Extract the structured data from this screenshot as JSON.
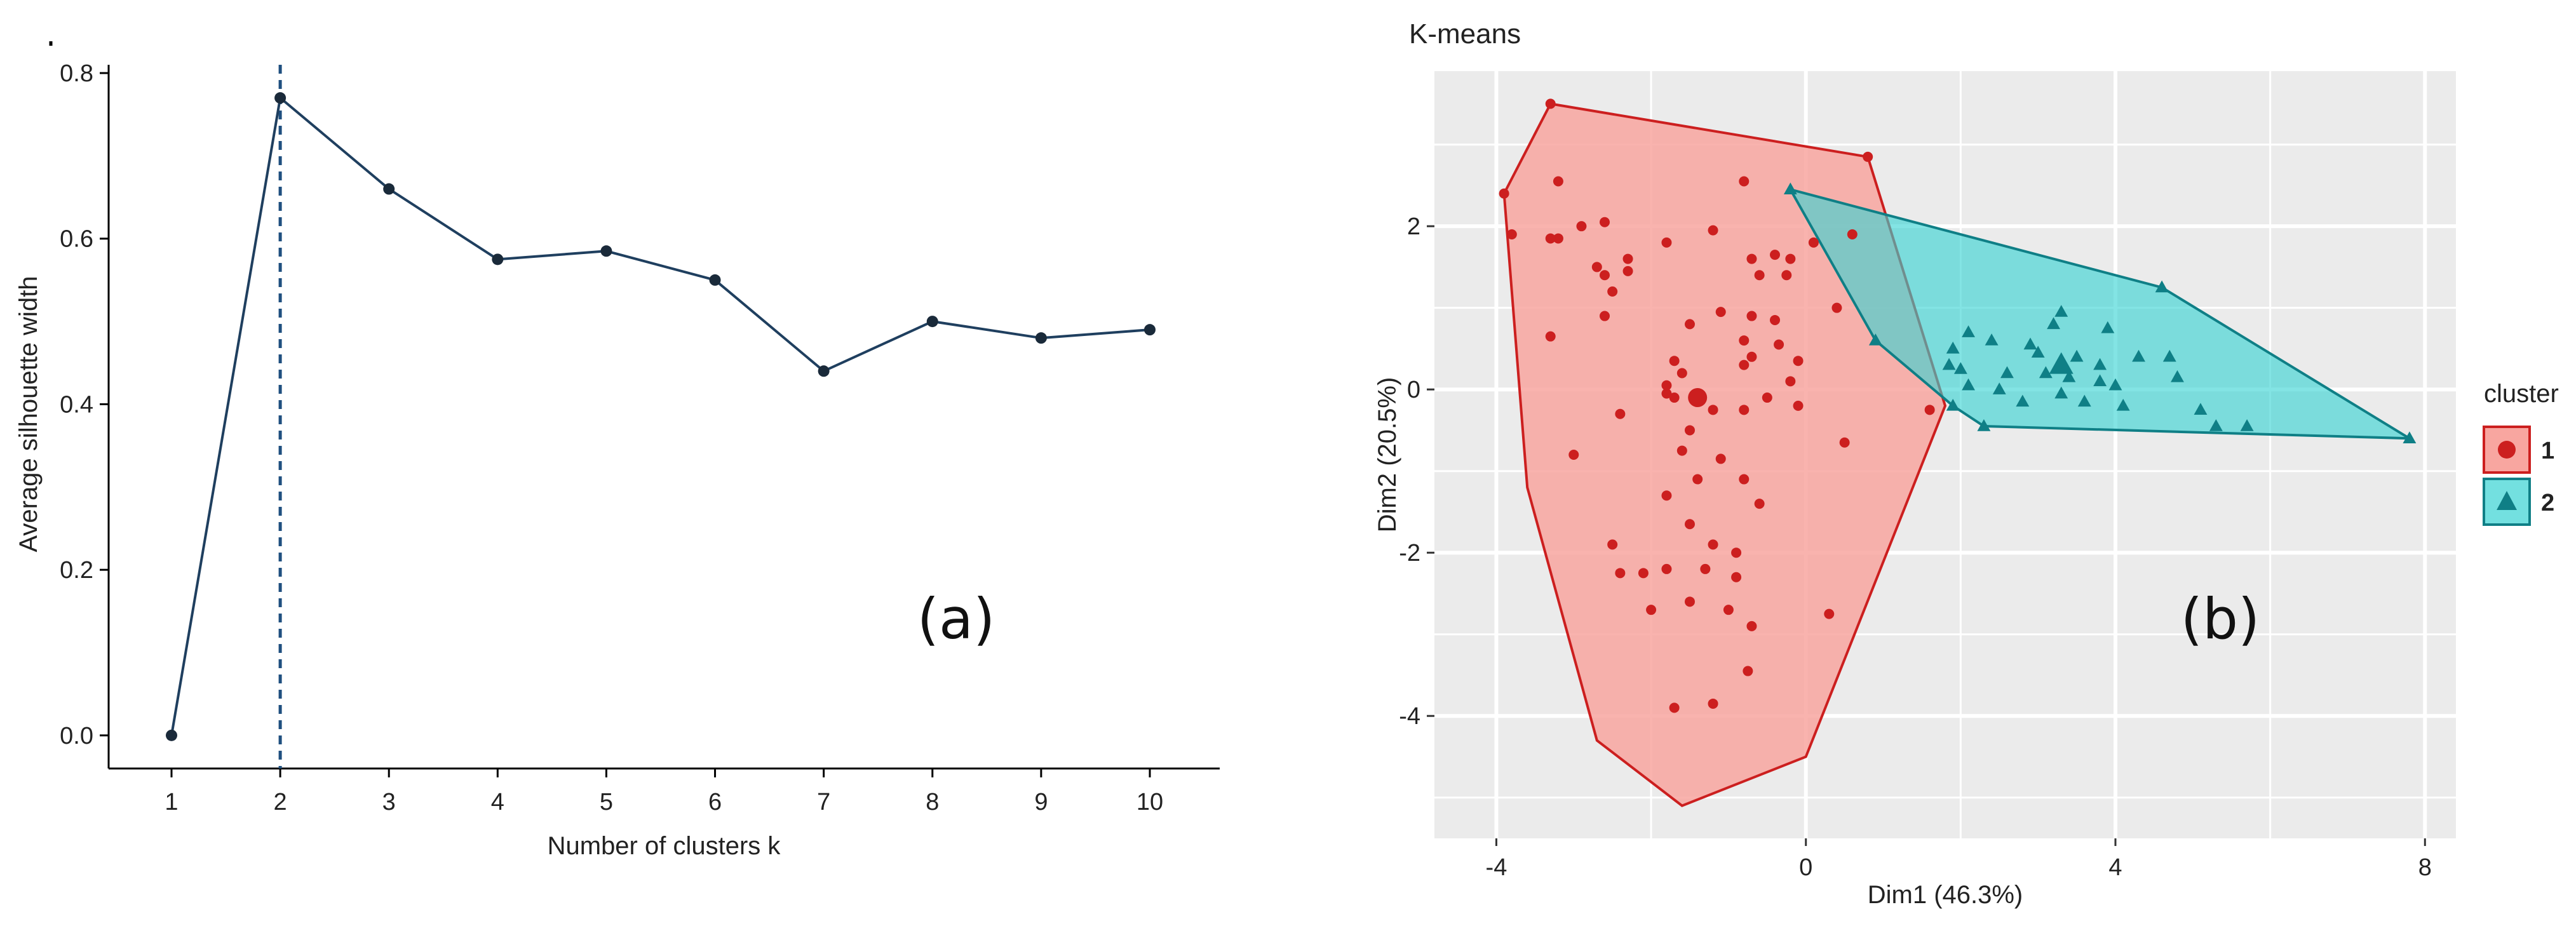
{
  "chart_data": [
    {
      "id": "a",
      "type": "line",
      "title": "",
      "panel_label": "(a)",
      "xlabel": "Number of clusters k",
      "ylabel": "Average silhouette width",
      "x": [
        1,
        2,
        3,
        4,
        5,
        6,
        7,
        8,
        9,
        10
      ],
      "values": [
        0.0,
        0.77,
        0.66,
        0.575,
        0.585,
        0.55,
        0.44,
        0.5,
        0.48,
        0.49
      ],
      "xticks": [
        "1",
        "2",
        "3",
        "4",
        "5",
        "6",
        "7",
        "8",
        "9",
        "10"
      ],
      "yticks": [
        "0.0",
        "0.2",
        "0.4",
        "0.6",
        "0.8"
      ],
      "ylim": [
        -0.04,
        0.81
      ],
      "optimal_k": 2,
      "grid": false,
      "line_color": "#1f3f5f"
    },
    {
      "id": "b",
      "type": "scatter",
      "title": "K-means",
      "panel_label": "(b)",
      "xlabel": "Dim1 (46.3%)",
      "ylabel": "Dim2 (20.5%)",
      "xlim": [
        -4.8,
        8.4
      ],
      "ylim": [
        -5.5,
        3.9
      ],
      "xticks": [
        "-4",
        "0",
        "4",
        "8"
      ],
      "yticks": [
        "-4",
        "-2",
        "0",
        "2"
      ],
      "grid": true,
      "legend_title": "cluster",
      "legend_position": "right",
      "series": [
        {
          "name": "1",
          "marker": "circle",
          "color": "#cc1f1f",
          "fill": "#f8a6a0",
          "centroid": [
            -1.4,
            -0.1
          ],
          "hull": [
            [
              -3.3,
              3.5
            ],
            [
              0.8,
              2.85
            ],
            [
              1.8,
              -0.2
            ],
            [
              0.0,
              -4.5
            ],
            [
              -1.6,
              -5.1
            ],
            [
              -2.7,
              -4.3
            ],
            [
              -3.6,
              -1.2
            ],
            [
              -3.9,
              2.4
            ]
          ],
          "points": [
            [
              -3.3,
              3.5
            ],
            [
              0.8,
              2.85
            ],
            [
              -3.9,
              2.4
            ],
            [
              -3.2,
              2.55
            ],
            [
              -0.8,
              2.55
            ],
            [
              -3.2,
              1.85
            ],
            [
              -3.3,
              1.85
            ],
            [
              -3.8,
              1.9
            ],
            [
              -2.9,
              2.0
            ],
            [
              -2.6,
              2.05
            ],
            [
              -1.8,
              1.8
            ],
            [
              -1.2,
              1.95
            ],
            [
              -0.7,
              1.6
            ],
            [
              -0.4,
              1.65
            ],
            [
              -2.3,
              1.6
            ],
            [
              -2.3,
              1.45
            ],
            [
              -2.7,
              1.5
            ],
            [
              -2.6,
              1.4
            ],
            [
              -0.2,
              1.6
            ],
            [
              -0.25,
              1.4
            ],
            [
              0.1,
              1.8
            ],
            [
              0.6,
              1.9
            ],
            [
              -0.6,
              1.4
            ],
            [
              -2.5,
              1.2
            ],
            [
              -2.6,
              0.9
            ],
            [
              -1.1,
              0.95
            ],
            [
              -0.7,
              0.9
            ],
            [
              -0.4,
              0.85
            ],
            [
              0.4,
              1.0
            ],
            [
              -3.3,
              0.65
            ],
            [
              -1.5,
              0.8
            ],
            [
              -0.8,
              0.6
            ],
            [
              -0.35,
              0.55
            ],
            [
              -1.7,
              0.35
            ],
            [
              -0.8,
              0.3
            ],
            [
              -0.7,
              0.4
            ],
            [
              -0.1,
              0.35
            ],
            [
              -1.6,
              0.2
            ],
            [
              -0.2,
              0.1
            ],
            [
              -1.8,
              -0.05
            ],
            [
              -1.8,
              0.05
            ],
            [
              -1.7,
              -0.1
            ],
            [
              -0.5,
              -0.1
            ],
            [
              -0.1,
              -0.2
            ],
            [
              -2.4,
              -0.3
            ],
            [
              -1.2,
              -0.25
            ],
            [
              -0.8,
              -0.25
            ],
            [
              -1.5,
              -0.5
            ],
            [
              -1.6,
              -0.75
            ],
            [
              0.5,
              -0.65
            ],
            [
              -3.0,
              -0.8
            ],
            [
              -1.1,
              -0.85
            ],
            [
              -0.8,
              -1.1
            ],
            [
              -1.4,
              -1.1
            ],
            [
              -1.8,
              -1.3
            ],
            [
              -0.6,
              -1.4
            ],
            [
              -1.5,
              -1.65
            ],
            [
              -1.2,
              -1.9
            ],
            [
              -2.5,
              -1.9
            ],
            [
              -0.9,
              -2.0
            ],
            [
              -2.4,
              -2.25
            ],
            [
              -2.1,
              -2.25
            ],
            [
              -1.8,
              -2.2
            ],
            [
              -1.3,
              -2.2
            ],
            [
              -0.9,
              -2.3
            ],
            [
              0.3,
              -2.75
            ],
            [
              -1.5,
              -2.6
            ],
            [
              -1.0,
              -2.7
            ],
            [
              -2.0,
              -2.7
            ],
            [
              -0.7,
              -2.9
            ],
            [
              -0.75,
              -3.45
            ],
            [
              -1.7,
              -3.9
            ],
            [
              -1.2,
              -3.85
            ],
            [
              1.6,
              -0.25
            ]
          ]
        },
        {
          "name": "2",
          "marker": "triangle",
          "color": "#0f7f86",
          "fill": "#37d3d3",
          "centroid": [
            3.3,
            0.3
          ],
          "hull": [
            [
              -0.2,
              2.45
            ],
            [
              4.6,
              1.25
            ],
            [
              7.8,
              -0.6
            ],
            [
              2.3,
              -0.45
            ],
            [
              1.9,
              -0.2
            ],
            [
              0.9,
              0.6
            ]
          ],
          "points": [
            [
              -0.2,
              2.45
            ],
            [
              4.6,
              1.25
            ],
            [
              7.8,
              -0.6
            ],
            [
              2.3,
              -0.45
            ],
            [
              1.9,
              -0.2
            ],
            [
              0.9,
              0.6
            ],
            [
              3.3,
              0.95
            ],
            [
              3.2,
              0.8
            ],
            [
              3.9,
              0.75
            ],
            [
              2.1,
              0.7
            ],
            [
              2.4,
              0.6
            ],
            [
              1.9,
              0.5
            ],
            [
              4.3,
              0.4
            ],
            [
              2.9,
              0.55
            ],
            [
              3.0,
              0.45
            ],
            [
              3.5,
              0.4
            ],
            [
              3.8,
              0.3
            ],
            [
              4.7,
              0.4
            ],
            [
              2.0,
              0.25
            ],
            [
              2.6,
              0.2
            ],
            [
              3.1,
              0.2
            ],
            [
              3.4,
              0.15
            ],
            [
              2.1,
              0.05
            ],
            [
              2.5,
              0.0
            ],
            [
              3.8,
              0.1
            ],
            [
              4.0,
              0.05
            ],
            [
              4.8,
              0.15
            ],
            [
              3.3,
              -0.05
            ],
            [
              2.8,
              -0.15
            ],
            [
              3.6,
              -0.15
            ],
            [
              4.1,
              -0.2
            ],
            [
              5.1,
              -0.25
            ],
            [
              5.3,
              -0.45
            ],
            [
              5.7,
              -0.45
            ],
            [
              1.85,
              0.3
            ]
          ]
        }
      ]
    }
  ]
}
